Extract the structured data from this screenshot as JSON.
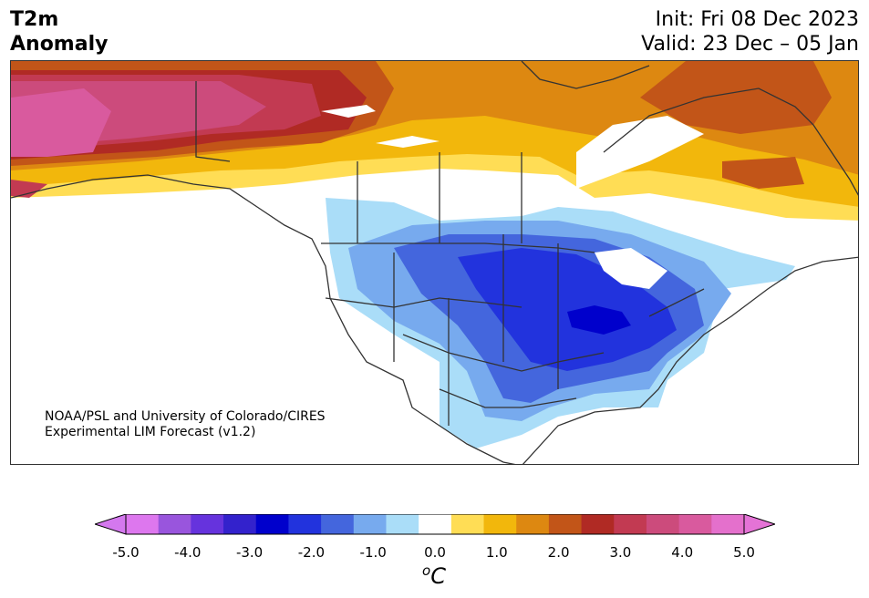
{
  "header": {
    "title_line1": "T2m",
    "title_line2": "Anomaly",
    "init": "Init: Fri 08 Dec 2023",
    "valid": "Valid: 23 Dec – 05 Jan"
  },
  "credit": {
    "line1": "NOAA/PSL and University of Colorado/CIRES",
    "line2": "Experimental LIM Forecast (v1.2)"
  },
  "colorbar": {
    "unit_base": "C",
    "unit_sup": "o",
    "ticks": [
      "-5.0",
      "-4.0",
      "-3.0",
      "-2.0",
      "-1.0",
      "0.0",
      "1.0",
      "2.0",
      "3.0",
      "4.0",
      "5.0"
    ],
    "colors": [
      "#dd77ee",
      "#9955dd",
      "#6633dd",
      "#3322cc",
      "#0000cc",
      "#2233dd",
      "#4466dd",
      "#77aaee",
      "#aaddf8",
      "#ffffff",
      "#ffdd55",
      "#f2b70c",
      "#dd8811",
      "#c25518",
      "#b02a24",
      "#c23a52",
      "#cc4b7c",
      "#d95a9e",
      "#e470cc"
    ],
    "extend_low": "#d478ee",
    "extend_high": "#e473d6"
  },
  "map_palette": {
    "pink": "#d95a9e",
    "magenta": "#cc4b7c",
    "rose": "#c23a52",
    "red": "#b02a24",
    "rust": "#c25518",
    "orange": "#dd8811",
    "gold": "#f2b70c",
    "yellow": "#ffdd55",
    "light_blue": "#aaddf8",
    "sky_blue": "#77aaee",
    "blue": "#4466dd",
    "royal_blue": "#2233dd",
    "deep_blue": "#0000cc",
    "coast": "#333333"
  }
}
